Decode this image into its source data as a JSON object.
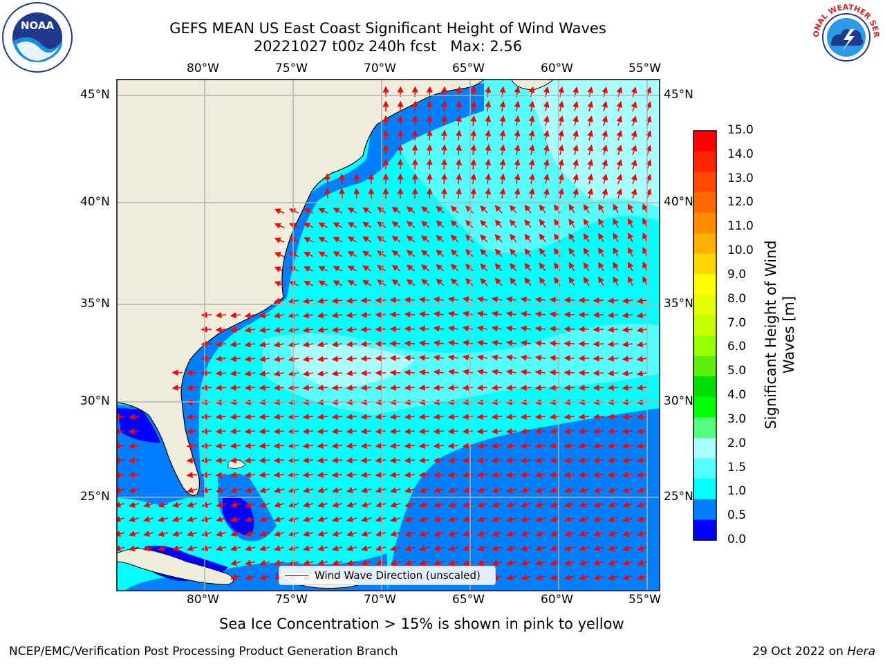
{
  "title": {
    "line1": "GEFS MEAN US East Coast Significant Height of Wind Waves",
    "line2": "20221027 t00z 240h fcst   Max: 2.56"
  },
  "map": {
    "lon_labels": [
      "80°W",
      "75°W",
      "70°W",
      "65°W",
      "60°W",
      "55°W"
    ],
    "lat_labels": [
      "45°N",
      "40°N",
      "35°N",
      "30°N",
      "25°N"
    ],
    "extent": {
      "lon": [
        -85,
        -54.5
      ],
      "lat": [
        20.5,
        46.5
      ]
    },
    "gridlines": true,
    "land_color": "#efecdc",
    "vector_color": "#ff0000"
  },
  "colorbar": {
    "label": "Significant Height of Wind Waves [m]",
    "ticks": [
      "15.0",
      "14.0",
      "13.0",
      "12.0",
      "11.0",
      "10.0",
      "9.0",
      "8.0",
      "7.0",
      "6.0",
      "5.0",
      "4.0",
      "3.0",
      "2.0",
      "1.5",
      "1.0",
      "0.5",
      "0.0"
    ],
    "colors": [
      "#ff0000",
      "#ff2400",
      "#ff4800",
      "#ff6a00",
      "#ff8c00",
      "#ffb000",
      "#ffd700",
      "#ffff00",
      "#e6ff00",
      "#c8ff00",
      "#96ff00",
      "#5aee0a",
      "#00dd00",
      "#00ff00",
      "#55ff80",
      "#a9ffff",
      "#55ffff",
      "#00ffff",
      "#0080ff",
      "#0000ff"
    ]
  },
  "legend": {
    "label": "Wind Wave Direction (unscaled)"
  },
  "note": "Sea Ice Concentration > 15% is shown in pink to yellow",
  "footer": {
    "left": "NCEP/EMC/Verification Post Processing Product Generation Branch",
    "right_date": "29 Oct 2022 on",
    "right_host": "Hera"
  },
  "logos": {
    "left": "NOAA",
    "right": "NATIONAL WEATHER SERVICE"
  }
}
